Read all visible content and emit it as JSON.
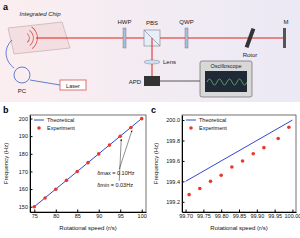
{
  "diagram": {
    "panel": "a",
    "labels": {
      "chip": "Integrated Chip",
      "hwp": "HWP",
      "pbs": "PBS",
      "qwp": "QWP",
      "rotor": "Rotor",
      "mirror": "M",
      "pc": "PC",
      "laser": "Laser",
      "lens": "Lens",
      "apd": "APD",
      "oscilloscope": "Oscilloscope"
    }
  },
  "chart_data": [
    {
      "type": "scatter",
      "panel": "b",
      "x_label": "Rotational speed (r/s)",
      "y_label": "Frequency (Hz)",
      "xlim": [
        74,
        101
      ],
      "ylim": [
        147,
        202
      ],
      "xticks": [
        75,
        80,
        85,
        90,
        95,
        100
      ],
      "yticks": [
        150,
        160,
        170,
        180,
        190,
        200
      ],
      "legend": "upper left",
      "grid": false,
      "annotations": [
        {
          "text": "δmax = 0.10Hz"
        },
        {
          "text": "δmin = 0.03Hz"
        }
      ],
      "series": [
        {
          "name": "Theoretical",
          "type": "line",
          "color": "#3346d1",
          "line_style": "solid",
          "x": [
            75,
            100
          ],
          "values": [
            150,
            200
          ]
        },
        {
          "name": "Experiment",
          "type": "scatter",
          "color": "#e8392e",
          "marker": "circle",
          "x": [
            75,
            77.5,
            80,
            82.5,
            85,
            87.5,
            90,
            92.5,
            95,
            97.5,
            100
          ],
          "values": [
            149.95,
            154.97,
            159.94,
            164.96,
            169.93,
            174.97,
            179.95,
            184.94,
            189.97,
            194.9,
            199.93
          ]
        }
      ]
    },
    {
      "type": "scatter",
      "panel": "c",
      "x_label": "Rotational speed (r/s)",
      "y_label": "Frequency (Hz)",
      "xlim": [
        99.69,
        100.01
      ],
      "ylim": [
        199.1,
        200.05
      ],
      "xticks": [
        {
          "value": 99.7,
          "label": "99.70"
        },
        {
          "value": 99.75,
          "label": "99.75"
        },
        {
          "value": 99.8,
          "label": "99.80"
        },
        {
          "value": 99.85,
          "label": "99.85"
        },
        {
          "value": 99.9,
          "label": "99.90"
        },
        {
          "value": 99.95,
          "label": "99.95"
        },
        {
          "value": 100,
          "label": "100.00"
        }
      ],
      "yticks": [
        199.2,
        199.4,
        199.6,
        199.8,
        {
          "value": 200,
          "label": "200.0"
        }
      ],
      "legend": "upper left",
      "grid": false,
      "series": [
        {
          "name": "Theoretical",
          "type": "line",
          "color": "#3346d1",
          "line_style": "solid",
          "x": [
            99.7,
            100
          ],
          "values": [
            199.4,
            200
          ]
        },
        {
          "name": "Experiment",
          "type": "scatter",
          "color": "#e8392e",
          "marker": "circle",
          "x": [
            99.71,
            99.74,
            99.77,
            99.8,
            99.83,
            99.86,
            99.89,
            99.92,
            99.96,
            99.99
          ],
          "values": [
            199.27,
            199.33,
            199.4,
            199.46,
            199.54,
            199.6,
            199.67,
            199.73,
            199.82,
            199.93
          ]
        }
      ]
    }
  ]
}
